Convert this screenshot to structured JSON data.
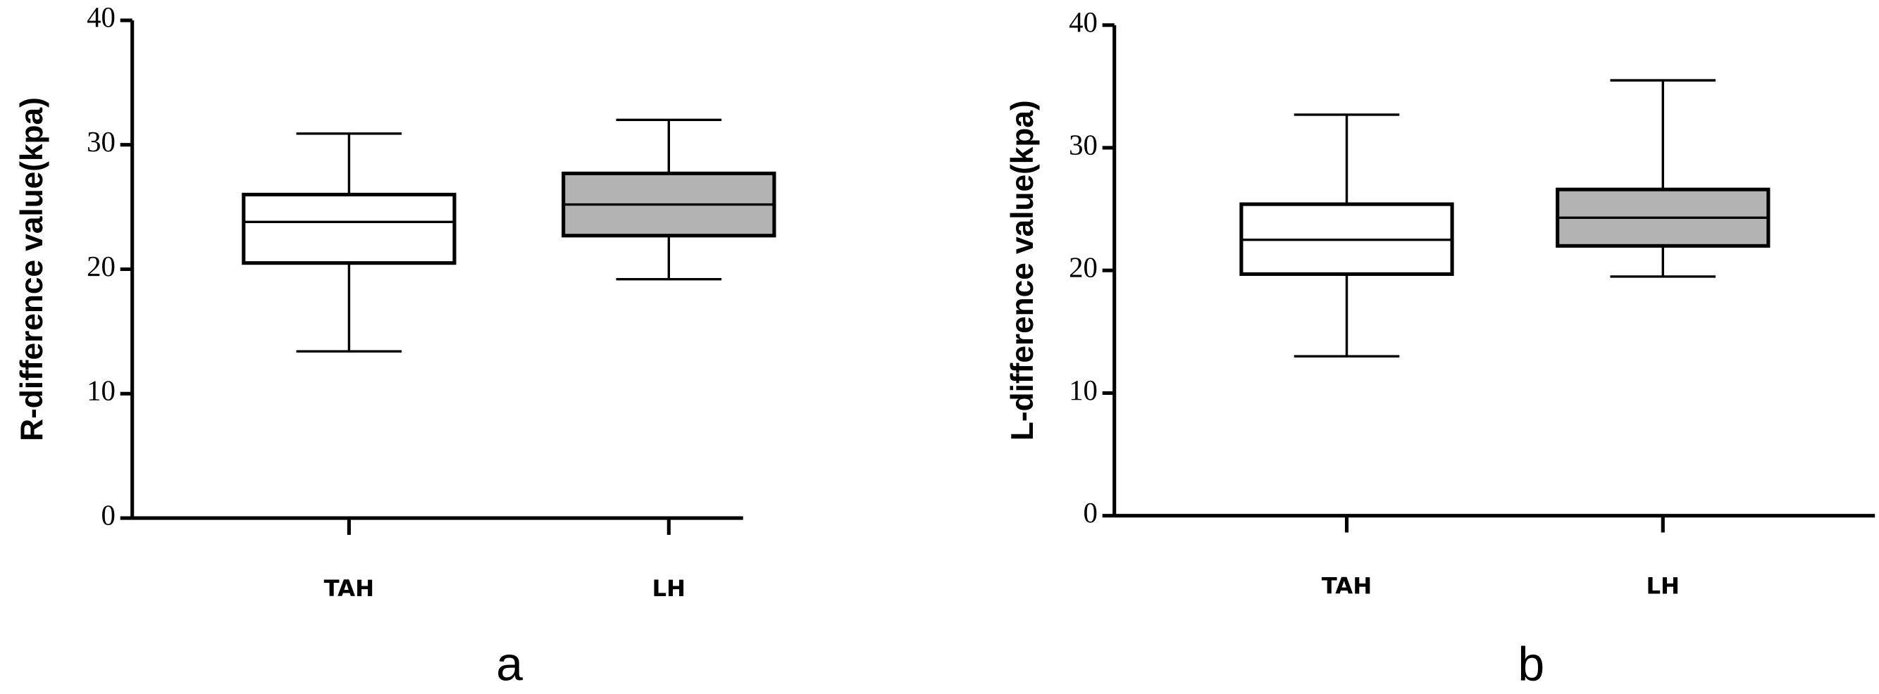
{
  "chart_data": [
    {
      "type": "box",
      "ylabel": "R-difference value(kpa)",
      "panel_label": "a",
      "categories": [
        "TAH",
        "LH"
      ],
      "boxes": [
        {
          "min": 13.4,
          "q1": 20.5,
          "median": 23.8,
          "q3": 26,
          "max": 30.9,
          "color": "#ffffff"
        },
        {
          "min": 19.2,
          "q1": 22.7,
          "median": 25.2,
          "q3": 27.7,
          "max": 32,
          "color": "#b3b3b3"
        }
      ],
      "ylim": [
        0,
        40
      ],
      "yticks": [
        0,
        10,
        20,
        30,
        40
      ]
    },
    {
      "type": "box",
      "ylabel": "L-difference value(kpa)",
      "panel_label": "b",
      "categories": [
        "TAH",
        "LH"
      ],
      "boxes": [
        {
          "min": 13,
          "q1": 19.7,
          "median": 22.5,
          "q3": 25.4,
          "max": 32.7,
          "color": "#ffffff"
        },
        {
          "min": 19.5,
          "q1": 22,
          "median": 24.3,
          "q3": 26.6,
          "max": 35.5,
          "color": "#b3b3b3"
        }
      ],
      "ylim": [
        0,
        40
      ],
      "yticks": [
        0,
        10,
        20,
        30,
        40
      ]
    }
  ]
}
